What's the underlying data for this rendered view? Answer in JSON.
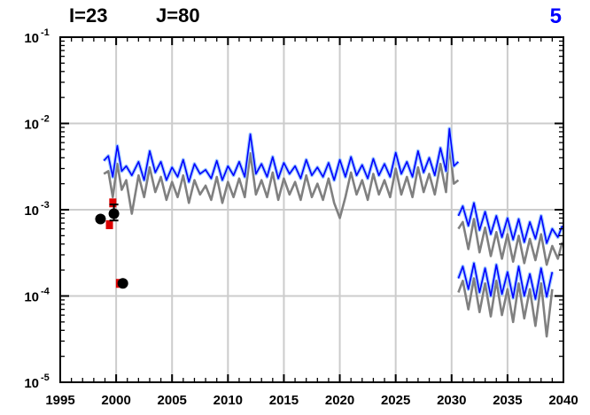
{
  "chart_data": {
    "type": "line",
    "title_left": "I=23",
    "title_mid": "J=80",
    "panel_number": "5",
    "xlabel": "",
    "ylabel": "",
    "xlim": [
      1995,
      2040
    ],
    "ylim": [
      1e-05,
      0.1
    ],
    "yscale": "log",
    "grid": true,
    "x_ticks": [
      1995,
      2000,
      2005,
      2010,
      2015,
      2020,
      2025,
      2030,
      2035,
      2040
    ],
    "y_ticks": [
      {
        "base": "10",
        "exp": "-1",
        "value": 0.1
      },
      {
        "base": "10",
        "exp": "-2",
        "value": 0.01
      },
      {
        "base": "10",
        "exp": "-3",
        "value": 0.001
      },
      {
        "base": "10",
        "exp": "-4",
        "value": 0.0001
      },
      {
        "base": "10",
        "exp": "-5",
        "value": 1e-05
      }
    ],
    "colors": {
      "blue": "#0000ff",
      "light_blue": "#9ec9ff",
      "gray": "#808080",
      "red": "#dd0000",
      "grid": "#cccccc"
    },
    "series": [
      {
        "style": "blue",
        "segments": [
          {
            "x": [
              1998.9,
              1999.3,
              1999.7,
              2000.1,
              2000.5,
              2000.9,
              2001.4,
              2002.0,
              2002.5,
              2003.0,
              2003.5,
              2004.0,
              2004.5,
              2005.0,
              2005.5,
              2006.0,
              2006.5,
              2007.0,
              2007.5,
              2008.0,
              2008.5,
              2009.0,
              2009.5,
              2010.0,
              2010.5,
              2011.0,
              2011.5,
              2012.0,
              2012.5,
              2013.0,
              2013.5,
              2014.0,
              2014.5,
              2015.0,
              2015.5,
              2016.0,
              2016.5,
              2017.0,
              2017.5,
              2018.0,
              2018.5,
              2019.0,
              2019.5,
              2020.0,
              2020.5,
              2021.0,
              2021.5,
              2022.0,
              2022.5,
              2023.0,
              2023.5,
              2024.0,
              2024.5,
              2025.0,
              2025.5,
              2026.0,
              2026.5,
              2027.0,
              2027.5,
              2028.0,
              2028.5,
              2029.0,
              2029.5,
              2029.8,
              2030.2,
              2030.6
            ],
            "y": [
              0.0037,
              0.0042,
              0.0024,
              0.0055,
              0.0028,
              0.0032,
              0.0025,
              0.0036,
              0.0022,
              0.0048,
              0.0027,
              0.0036,
              0.0022,
              0.0031,
              0.0024,
              0.0038,
              0.0021,
              0.0034,
              0.0026,
              0.0029,
              0.0023,
              0.0037,
              0.0022,
              0.0032,
              0.0025,
              0.0036,
              0.0024,
              0.0075,
              0.0026,
              0.0034,
              0.0024,
              0.0041,
              0.0023,
              0.0035,
              0.0026,
              0.0032,
              0.0023,
              0.0038,
              0.0025,
              0.0031,
              0.0024,
              0.0035,
              0.0022,
              0.0038,
              0.0024,
              0.0041,
              0.0025,
              0.0033,
              0.0023,
              0.0039,
              0.0025,
              0.0034,
              0.0024,
              0.0046,
              0.0026,
              0.0036,
              0.0024,
              0.0048,
              0.0027,
              0.004,
              0.0025,
              0.0052,
              0.0028,
              0.0087,
              0.0032,
              0.0036
            ]
          },
          {
            "x": [
              2030.6,
              2031.0,
              2031.5,
              2032.0,
              2032.5,
              2033.0,
              2033.5,
              2034.0,
              2034.5,
              2035.0,
              2035.5,
              2036.0,
              2036.5,
              2037.0,
              2037.5,
              2038.0,
              2038.5,
              2039.0,
              2039.5,
              2039.9
            ],
            "y": [
              0.00085,
              0.0011,
              0.00065,
              0.0012,
              0.00058,
              0.00095,
              0.00052,
              0.00085,
              0.00048,
              0.0008,
              0.00045,
              0.00078,
              0.00042,
              0.00072,
              0.00046,
              0.00085,
              0.00041,
              0.0006,
              0.00048,
              0.00065
            ]
          },
          {
            "x": [
              2030.6,
              2031.0,
              2031.5,
              2032.0,
              2032.5,
              2033.0,
              2033.5,
              2034.0,
              2034.5,
              2035.0,
              2035.5,
              2036.0,
              2036.5,
              2037.0,
              2037.5,
              2038.0,
              2038.5,
              2039.0
            ],
            "y": [
              0.00016,
              0.00022,
              0.00012,
              0.00024,
              0.00011,
              0.00021,
              0.0001,
              0.00023,
              0.000105,
              0.00019,
              9.5e-05,
              0.00022,
              0.0001,
              0.00018,
              9.2e-05,
              0.00021,
              9.8e-05,
              0.00019
            ]
          }
        ]
      },
      {
        "style": "gray",
        "segments": [
          {
            "x": [
              1998.9,
              1999.3,
              1999.7,
              2000.1,
              2000.5,
              2000.9,
              2001.4,
              2002.0,
              2002.5,
              2003.0,
              2003.5,
              2004.0,
              2004.5,
              2005.0,
              2005.5,
              2006.0,
              2006.5,
              2007.0,
              2007.5,
              2008.0,
              2008.5,
              2009.0,
              2009.5,
              2010.0,
              2010.5,
              2011.0,
              2011.5,
              2012.0,
              2012.5,
              2013.0,
              2013.5,
              2014.0,
              2014.5,
              2015.0,
              2015.5,
              2016.0,
              2016.5,
              2017.0,
              2017.5,
              2018.0,
              2018.5,
              2019.0,
              2019.5,
              2020.0,
              2020.5,
              2021.0,
              2021.5,
              2022.0,
              2022.5,
              2023.0,
              2023.5,
              2024.0,
              2024.5,
              2025.0,
              2025.5,
              2026.0,
              2026.5,
              2027.0,
              2027.5,
              2028.0,
              2028.5,
              2029.0,
              2029.5,
              2029.8,
              2030.2,
              2030.6
            ],
            "y": [
              0.0026,
              0.0028,
              0.0014,
              0.0034,
              0.0017,
              0.0022,
              0.0009,
              0.0025,
              0.0014,
              0.0031,
              0.0016,
              0.0024,
              0.0013,
              0.0021,
              0.0014,
              0.0025,
              0.0012,
              0.0022,
              0.0015,
              0.0019,
              0.0013,
              0.0024,
              0.0012,
              0.0021,
              0.0014,
              0.0023,
              0.0014,
              0.0045,
              0.0015,
              0.0022,
              0.0014,
              0.0027,
              0.0013,
              0.0023,
              0.0015,
              0.0021,
              0.0013,
              0.0025,
              0.0014,
              0.002,
              0.0013,
              0.0023,
              0.0012,
              0.0008,
              0.0014,
              0.0027,
              0.0015,
              0.0022,
              0.0013,
              0.0026,
              0.0015,
              0.0022,
              0.0014,
              0.003,
              0.0015,
              0.0024,
              0.0014,
              0.0031,
              0.0016,
              0.0026,
              0.0015,
              0.0034,
              0.0016,
              0.0055,
              0.002,
              0.0022
            ]
          },
          {
            "x": [
              2030.6,
              2031.0,
              2031.5,
              2032.0,
              2032.5,
              2033.0,
              2033.5,
              2034.0,
              2034.5,
              2035.0,
              2035.5,
              2036.0,
              2036.5,
              2037.0,
              2037.5,
              2038.0,
              2038.5,
              2039.0,
              2039.5,
              2039.9
            ],
            "y": [
              0.0006,
              0.00072,
              0.00035,
              0.00078,
              0.00032,
              0.00062,
              0.00029,
              0.00055,
              0.00027,
              0.00052,
              0.00025,
              0.0005,
              0.00024,
              0.00046,
              0.00026,
              0.00052,
              0.00023,
              0.00038,
              0.00027,
              0.00042
            ]
          },
          {
            "x": [
              2030.6,
              2031.0,
              2031.5,
              2032.0,
              2032.5,
              2033.0,
              2033.5,
              2034.0,
              2034.5,
              2035.0,
              2035.5,
              2036.0,
              2036.5,
              2037.0,
              2037.5,
              2038.0,
              2038.5,
              2039.0
            ],
            "y": [
              0.00011,
              0.00015,
              7e-05,
              0.00016,
              6.5e-05,
              0.00014,
              5.8e-05,
              0.00015,
              6e-05,
              0.00012,
              5e-05,
              0.00014,
              5.5e-05,
              0.00012,
              4.5e-05,
              0.00014,
              3.4e-05,
              0.00012
            ]
          }
        ]
      }
    ],
    "observations": {
      "points": [
        {
          "x": 1998.6,
          "y": 0.00078
        },
        {
          "x": 1999.8,
          "y": 0.0009
        },
        {
          "x": 2000.6,
          "y": 0.00014
        }
      ],
      "red_bars": [
        {
          "x": 1999.4,
          "y": 0.00067
        },
        {
          "x": 1999.7,
          "y": 0.0012
        },
        {
          "x": 2000.3,
          "y": 0.00014
        }
      ],
      "error_bars": [
        {
          "x": 1999.8,
          "y_low": 0.00075,
          "y_high": 0.00115
        }
      ]
    }
  }
}
